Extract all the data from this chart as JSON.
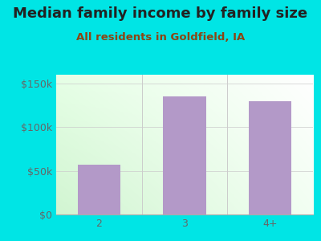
{
  "title": "Median family income by family size",
  "subtitle": "All residents in Goldfield, IA",
  "categories": [
    "2",
    "3",
    "4+"
  ],
  "values": [
    57000,
    135000,
    130000
  ],
  "bar_color": "#b399c8",
  "background_color": "#00e5e5",
  "title_color": "#222222",
  "subtitle_color": "#8b4513",
  "tick_color": "#666666",
  "ylim": [
    0,
    160000
  ],
  "yticks": [
    0,
    50000,
    100000,
    150000
  ],
  "ytick_labels": [
    "$0",
    "$50k",
    "$100k",
    "$150k"
  ],
  "title_fontsize": 13,
  "subtitle_fontsize": 9.5,
  "tick_fontsize": 9
}
